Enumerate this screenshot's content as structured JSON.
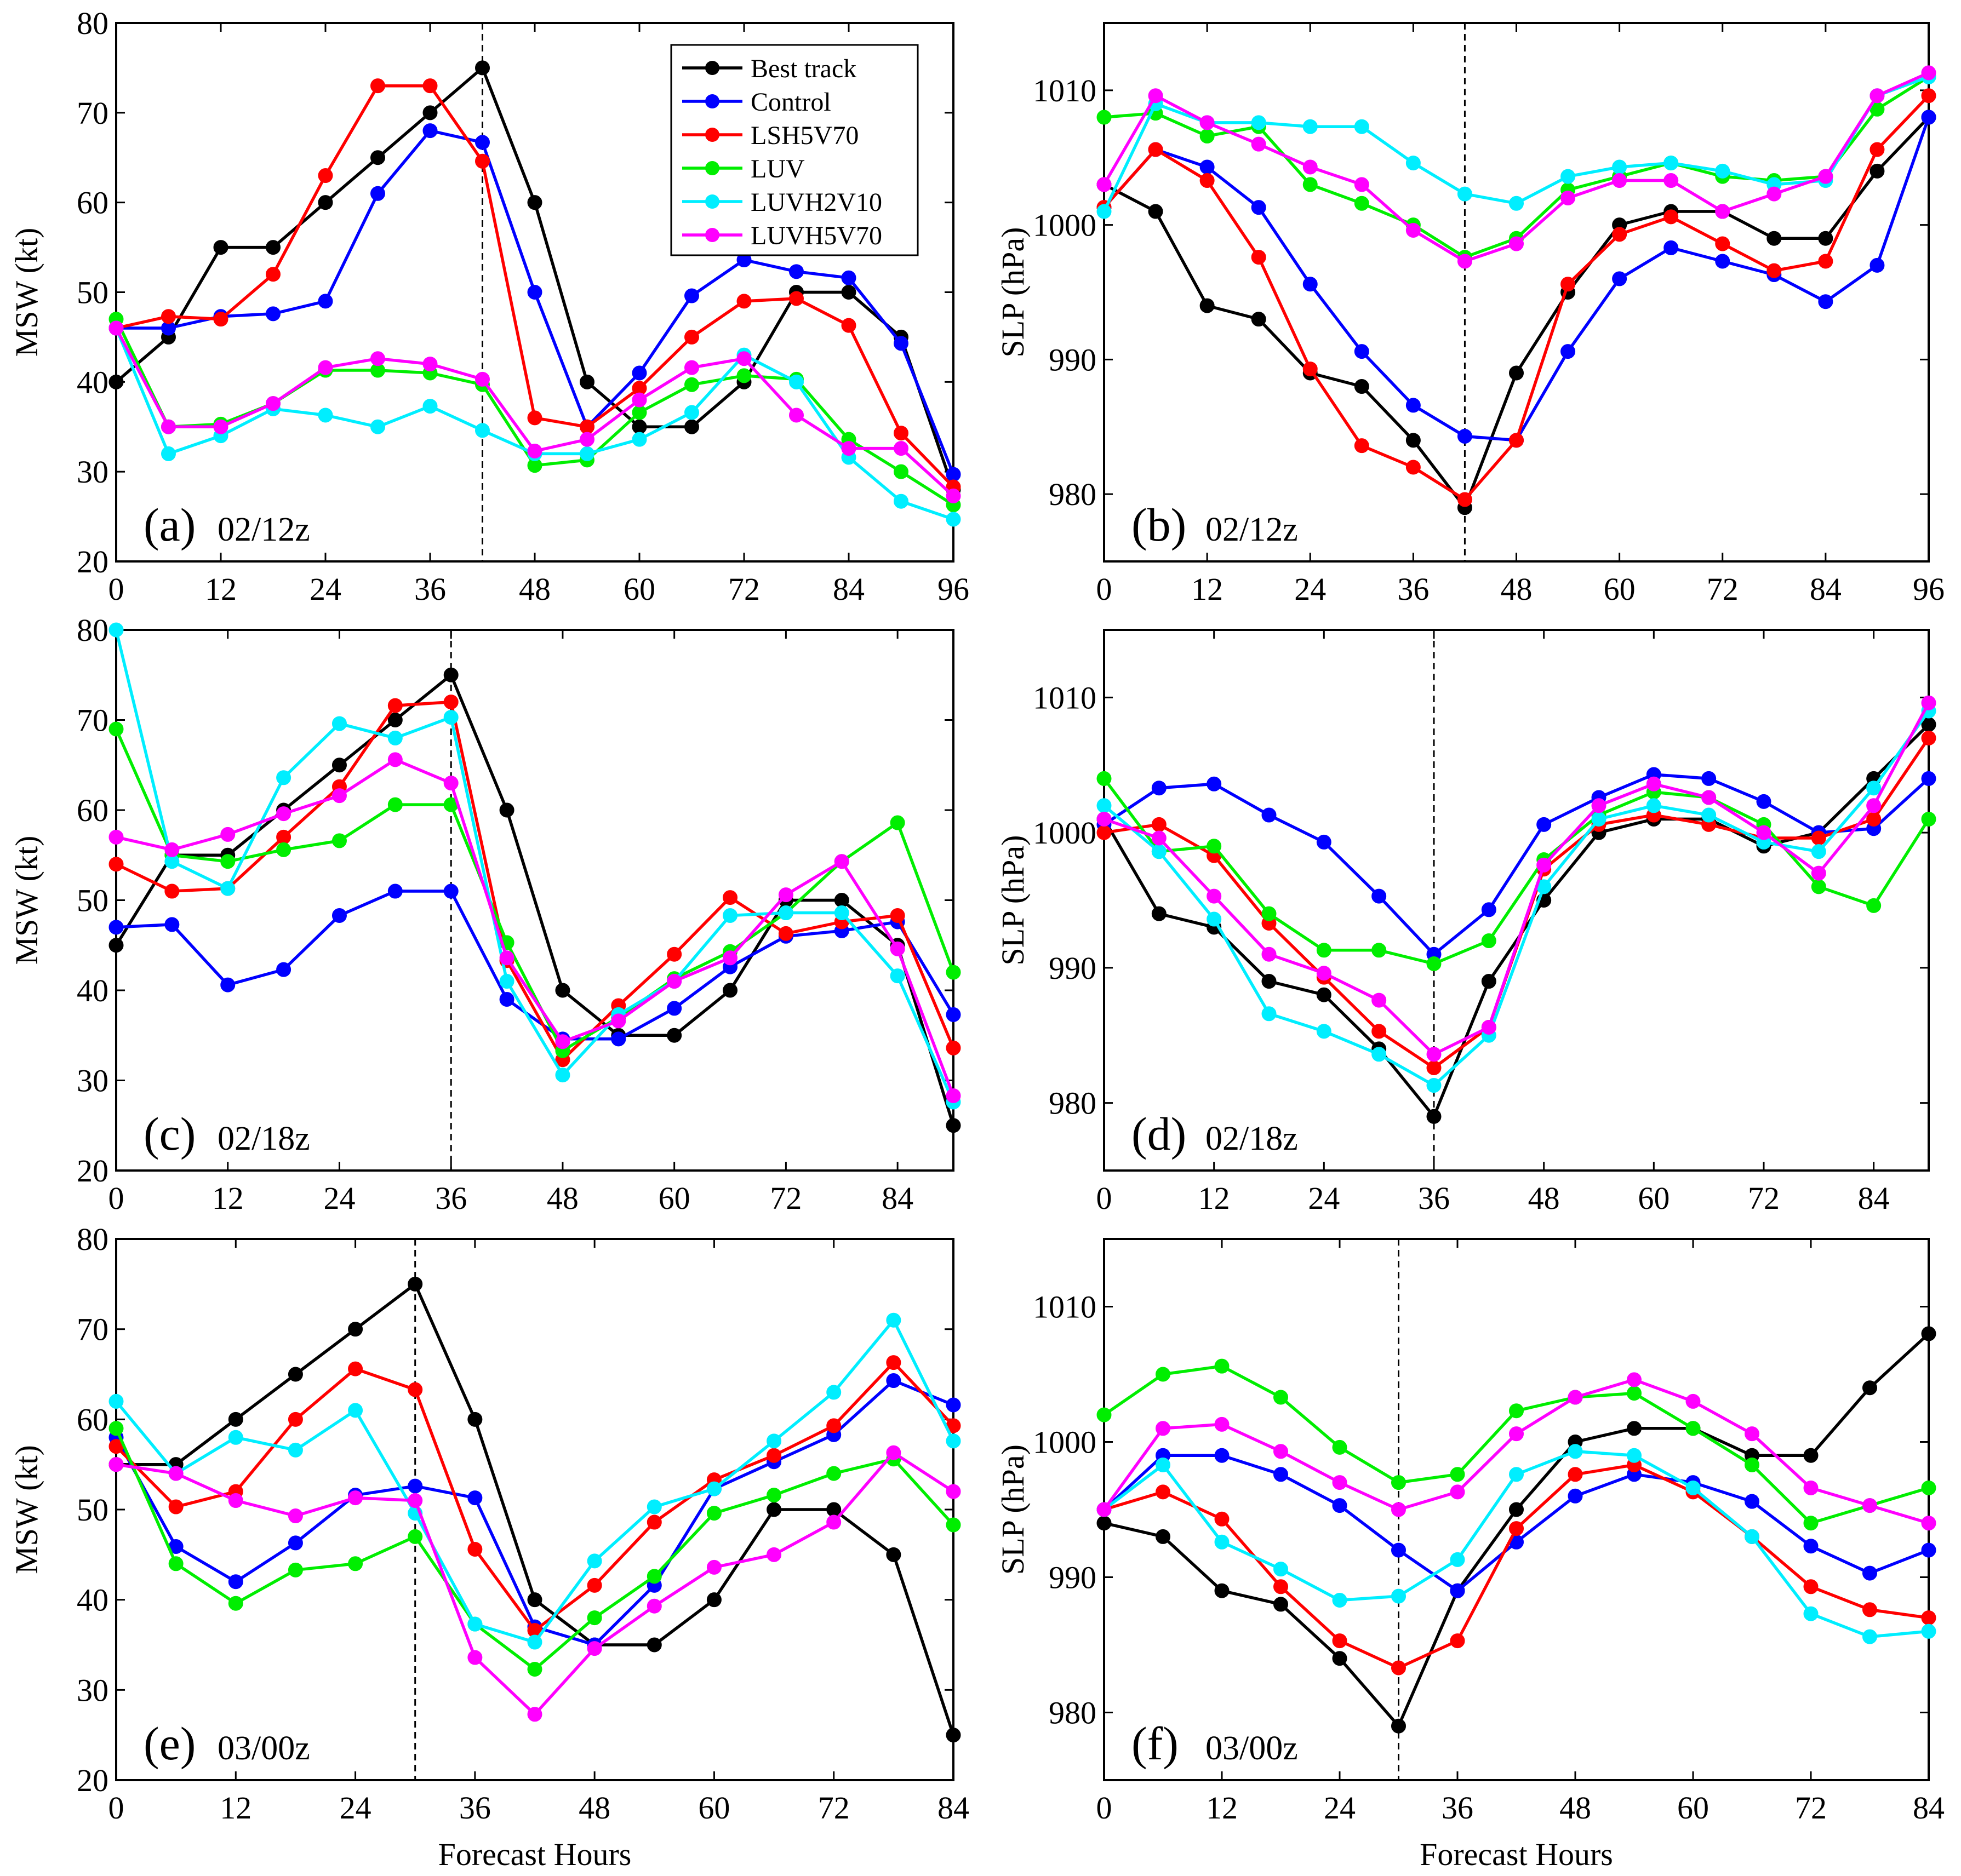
{
  "figure": {
    "series_styles": [
      {
        "name": "Best track",
        "color": "#000000"
      },
      {
        "name": "Control",
        "color": "#0000ff"
      },
      {
        "name": "LSH5V70",
        "color": "#ff0000"
      },
      {
        "name": "LUV",
        "color": "#00ee00"
      },
      {
        "name": "LUVH2V10",
        "color": "#00eeff"
      },
      {
        "name": "LUVH5V70",
        "color": "#ff00ff"
      }
    ],
    "x_common_label": "Forecast Hours"
  },
  "chart_data": [
    {
      "type": "line",
      "panel": "(a)",
      "init_time": "02/12z",
      "ylabel": "MSW (kt)",
      "xlabel": "",
      "xlim": [
        0,
        96
      ],
      "ylim": [
        20,
        80
      ],
      "xticks": [
        0,
        12,
        24,
        36,
        48,
        60,
        72,
        84,
        96
      ],
      "yticks": [
        20,
        30,
        40,
        50,
        60,
        70,
        80
      ],
      "vline_x": 42,
      "legend": "top-right",
      "x": [
        0,
        6,
        12,
        18,
        24,
        30,
        36,
        42,
        48,
        54,
        60,
        66,
        72,
        78,
        84,
        90,
        96
      ],
      "series": [
        {
          "name": "Best track",
          "values": [
            40,
            45,
            55,
            55,
            60,
            65,
            70,
            75,
            60,
            40,
            35,
            35,
            40,
            50,
            50,
            45,
            28
          ]
        },
        {
          "name": "Control",
          "values": [
            46,
            46,
            47.3,
            47.6,
            49,
            61,
            68,
            66.7,
            50,
            35,
            41,
            49.6,
            53.6,
            52.3,
            51.6,
            44.3,
            29.7
          ]
        },
        {
          "name": "LSH5V70",
          "values": [
            46,
            47.3,
            47,
            52,
            63,
            73,
            73,
            64.6,
            36,
            35,
            39.3,
            45,
            49,
            49.3,
            46.3,
            34.3,
            28.3
          ]
        },
        {
          "name": "LUV",
          "values": [
            47,
            35,
            35.3,
            37.6,
            41.3,
            41.3,
            41,
            39.7,
            30.7,
            31.3,
            36.6,
            39.7,
            40.7,
            40.3,
            33.6,
            30,
            26.3
          ]
        },
        {
          "name": "LUVH2V10",
          "values": [
            46,
            32,
            34,
            37,
            36.3,
            35,
            37.3,
            34.6,
            32,
            32,
            33.6,
            36.6,
            43,
            40,
            31.6,
            26.7,
            24.7
          ]
        },
        {
          "name": "LUVH5V70",
          "values": [
            46,
            35,
            35,
            37.6,
            41.6,
            42.6,
            42,
            40.3,
            32.3,
            33.6,
            38,
            41.6,
            42.6,
            36.3,
            32.6,
            32.6,
            27.3
          ]
        }
      ]
    },
    {
      "type": "line",
      "panel": "(b)",
      "init_time": "02/12z",
      "ylabel": "SLP (hPa)",
      "xlabel": "",
      "xlim": [
        0,
        96
      ],
      "ylim": [
        975,
        1015
      ],
      "xticks": [
        0,
        12,
        24,
        36,
        48,
        60,
        72,
        84,
        96
      ],
      "yticks": [
        980,
        990,
        1000,
        1010
      ],
      "vline_x": 42,
      "x": [
        0,
        6,
        12,
        18,
        24,
        30,
        36,
        42,
        48,
        54,
        60,
        66,
        72,
        78,
        84,
        90,
        96
      ],
      "series": [
        {
          "name": "Best track",
          "values": [
            1003,
            1001,
            994,
            993,
            989,
            988,
            984,
            979,
            989,
            995,
            1000,
            1001,
            1001,
            999,
            999,
            1004,
            1008
          ]
        },
        {
          "name": "Control",
          "values": [
            1001.3,
            1005.6,
            1004.3,
            1001.3,
            995.6,
            990.6,
            986.6,
            984.3,
            984,
            990.6,
            996,
            998.3,
            997.3,
            996.3,
            994.3,
            997,
            1008
          ]
        },
        {
          "name": "LSH5V70",
          "values": [
            1001.3,
            1005.6,
            1003.3,
            997.6,
            989.3,
            983.6,
            982,
            979.6,
            984,
            995.6,
            999.3,
            1000.6,
            998.6,
            996.6,
            997.3,
            1005.6,
            1009.6
          ]
        },
        {
          "name": "LUV",
          "values": [
            1008,
            1008.3,
            1006.6,
            1007.3,
            1003,
            1001.6,
            1000,
            997.6,
            999,
            1002.6,
            1003.6,
            1004.6,
            1003.6,
            1003.3,
            1003.6,
            1008.6,
            1011
          ]
        },
        {
          "name": "LUVH2V10",
          "values": [
            1001,
            1009,
            1007.6,
            1007.6,
            1007.3,
            1007.3,
            1004.6,
            1002.3,
            1001.6,
            1003.6,
            1004.3,
            1004.6,
            1004,
            1003,
            1003.3,
            1009.6,
            1011
          ]
        },
        {
          "name": "LUVH5V70",
          "values": [
            1003,
            1009.6,
            1007.6,
            1006,
            1004.3,
            1003,
            999.6,
            997.3,
            998.6,
            1002,
            1003.3,
            1003.3,
            1001,
            1002.3,
            1003.6,
            1009.6,
            1011.3
          ]
        }
      ]
    },
    {
      "type": "line",
      "panel": "(c)",
      "init_time": "02/18z",
      "ylabel": "MSW (kt)",
      "xlabel": "",
      "xlim": [
        0,
        90
      ],
      "ylim": [
        20,
        80
      ],
      "xticks": [
        0,
        12,
        24,
        36,
        48,
        60,
        72,
        84
      ],
      "yticks": [
        20,
        30,
        40,
        50,
        60,
        70,
        80
      ],
      "vline_x": 36,
      "x": [
        0,
        6,
        12,
        18,
        24,
        30,
        36,
        42,
        48,
        54,
        60,
        66,
        72,
        78,
        84,
        90
      ],
      "series": [
        {
          "name": "Best track",
          "values": [
            45,
            55,
            55,
            60,
            65,
            70,
            75,
            60,
            40,
            35,
            35,
            40,
            50,
            50,
            45,
            25
          ]
        },
        {
          "name": "Control",
          "values": [
            47,
            47.3,
            40.6,
            42.3,
            48.3,
            51,
            51,
            39,
            34.6,
            34.6,
            38,
            42.6,
            46,
            46.6,
            47.6,
            37.3
          ]
        },
        {
          "name": "LSH5V70",
          "values": [
            54,
            51,
            51.3,
            57,
            62.6,
            71.6,
            72,
            43.3,
            32.3,
            38.3,
            44,
            50.3,
            46.3,
            47.6,
            48.3,
            33.6
          ]
        },
        {
          "name": "LUV",
          "values": [
            69,
            55,
            54.3,
            55.6,
            56.6,
            60.6,
            60.6,
            45.3,
            33.3,
            37,
            41.3,
            44.3,
            48.6,
            54.3,
            58.6,
            42
          ]
        },
        {
          "name": "LUVH2V10",
          "values": [
            80,
            54.3,
            51.3,
            63.6,
            69.6,
            68,
            70.3,
            41,
            30.6,
            37.3,
            41,
            48.3,
            48.6,
            48.6,
            41.6,
            27.6
          ]
        },
        {
          "name": "LUVH5V70",
          "values": [
            57,
            55.6,
            57.3,
            59.6,
            61.6,
            65.6,
            63,
            43.6,
            34.3,
            36.6,
            41,
            43.6,
            50.6,
            54.3,
            44.6,
            28.3
          ]
        }
      ]
    },
    {
      "type": "line",
      "panel": "(d)",
      "init_time": "02/18z",
      "ylabel": "SLP (hPa)",
      "xlabel": "",
      "xlim": [
        0,
        90
      ],
      "ylim": [
        975,
        1015
      ],
      "xticks": [
        0,
        12,
        24,
        36,
        48,
        60,
        72,
        84
      ],
      "yticks": [
        980,
        990,
        1000,
        1010
      ],
      "vline_x": 36,
      "x": [
        0,
        6,
        12,
        18,
        24,
        30,
        36,
        42,
        48,
        54,
        60,
        66,
        72,
        78,
        84,
        90
      ],
      "series": [
        {
          "name": "Best track",
          "values": [
            1001,
            994,
            993,
            989,
            988,
            984,
            979,
            989,
            995,
            1000,
            1001,
            1001,
            999,
            1000,
            1004,
            1008
          ]
        },
        {
          "name": "Control",
          "values": [
            1000.6,
            1003.3,
            1003.6,
            1001.3,
            999.3,
            995.3,
            991,
            994.3,
            1000.6,
            1002.6,
            1004.3,
            1004,
            1002.3,
            1000,
            1000.3,
            1004
          ]
        },
        {
          "name": "LSH5V70",
          "values": [
            1000,
            1000.6,
            998.3,
            993.3,
            989.3,
            985.3,
            982.6,
            985.6,
            997.3,
            1000.6,
            1001.3,
            1000.6,
            999.6,
            999.6,
            1001,
            1007
          ]
        },
        {
          "name": "LUV",
          "values": [
            1004,
            998.6,
            999,
            994,
            991.3,
            991.3,
            990.3,
            992,
            998,
            1001.3,
            1003,
            1002.6,
            1000.6,
            996,
            994.6,
            1001
          ]
        },
        {
          "name": "LUVH2V10",
          "values": [
            1002,
            998.6,
            993.6,
            986.6,
            985.3,
            983.6,
            981.3,
            985,
            996,
            1001,
            1002,
            1001.3,
            999.3,
            998.6,
            1003.3,
            1009
          ]
        },
        {
          "name": "LUVH5V70",
          "values": [
            1001,
            999.6,
            995.3,
            991,
            989.6,
            987.6,
            983.6,
            985.6,
            997.6,
            1002,
            1003.6,
            1002.6,
            1000,
            997,
            1002,
            1009.6
          ]
        }
      ]
    },
    {
      "type": "line",
      "panel": "(e)",
      "init_time": "03/00z",
      "ylabel": "MSW (kt)",
      "xlabel": "Forecast Hours",
      "xlim": [
        0,
        84
      ],
      "ylim": [
        20,
        80
      ],
      "xticks": [
        0,
        12,
        24,
        36,
        48,
        60,
        72,
        84
      ],
      "yticks": [
        20,
        30,
        40,
        50,
        60,
        70,
        80
      ],
      "vline_x": 30,
      "x": [
        0,
        6,
        12,
        18,
        24,
        30,
        36,
        42,
        48,
        54,
        60,
        66,
        72,
        78,
        84
      ],
      "series": [
        {
          "name": "Best track",
          "values": [
            55,
            55,
            60,
            65,
            70,
            75,
            60,
            40,
            35,
            35,
            40,
            50,
            50,
            45,
            25
          ]
        },
        {
          "name": "Control",
          "values": [
            58,
            45.9,
            42,
            46.3,
            51.6,
            52.6,
            51.3,
            37,
            35,
            41.6,
            52.3,
            55.3,
            58.3,
            64.3,
            61.6
          ]
        },
        {
          "name": "LSH5V70",
          "values": [
            57,
            50.3,
            52,
            60,
            65.6,
            63.3,
            45.6,
            36.6,
            41.6,
            48.6,
            53.3,
            56,
            59.3,
            66.3,
            59.3
          ]
        },
        {
          "name": "LUV",
          "values": [
            59,
            44,
            39.6,
            43.3,
            44,
            47,
            37.3,
            32.3,
            38,
            42.6,
            49.6,
            51.6,
            54,
            55.6,
            48.3
          ]
        },
        {
          "name": "LUVH2V10",
          "values": [
            62,
            54,
            58,
            56.6,
            61,
            49.6,
            37.3,
            35.3,
            44.3,
            50.3,
            52.3,
            57.6,
            63,
            71,
            57.6
          ]
        },
        {
          "name": "LUVH5V70",
          "values": [
            55,
            54,
            51,
            49.3,
            51.3,
            51,
            33.6,
            27.3,
            34.6,
            39.3,
            43.6,
            45,
            48.6,
            56.3,
            52
          ]
        }
      ]
    },
    {
      "type": "line",
      "panel": "(f)",
      "init_time": "03/00z",
      "ylabel": "SLP (hPa)",
      "xlabel": "Forecast Hours",
      "xlim": [
        0,
        84
      ],
      "ylim": [
        975,
        1015
      ],
      "xticks": [
        0,
        12,
        24,
        36,
        48,
        60,
        72,
        84
      ],
      "yticks": [
        980,
        990,
        1000,
        1010
      ],
      "vline_x": 30,
      "x": [
        0,
        6,
        12,
        18,
        24,
        30,
        36,
        42,
        48,
        54,
        60,
        66,
        72,
        78,
        84
      ],
      "series": [
        {
          "name": "Best track",
          "values": [
            994,
            993,
            989,
            988,
            984,
            979,
            989,
            995,
            1000,
            1001,
            1001,
            999,
            999,
            1004,
            1008
          ]
        },
        {
          "name": "Control",
          "values": [
            995,
            999,
            999,
            997.6,
            995.3,
            992,
            989,
            992.6,
            996,
            997.6,
            997,
            995.6,
            992.3,
            990.3,
            992
          ]
        },
        {
          "name": "LSH5V70",
          "values": [
            995,
            996.3,
            994.3,
            989.3,
            985.3,
            983.3,
            985.3,
            993.6,
            997.6,
            998.3,
            996.3,
            993,
            989.3,
            987.6,
            987
          ]
        },
        {
          "name": "LUV",
          "values": [
            1002,
            1005,
            1005.6,
            1003.3,
            999.6,
            997,
            997.6,
            1002.3,
            1003.3,
            1003.6,
            1001,
            998.3,
            994,
            995.3,
            996.6
          ]
        },
        {
          "name": "LUVH2V10",
          "values": [
            995,
            998.3,
            992.6,
            990.6,
            988.3,
            988.6,
            991.3,
            997.6,
            999.3,
            999,
            996.6,
            993,
            987.3,
            985.6,
            986
          ]
        },
        {
          "name": "LUVH5V70",
          "values": [
            995,
            1001,
            1001.3,
            999.3,
            997,
            995,
            996.3,
            1000.6,
            1003.3,
            1004.6,
            1003,
            1000.6,
            996.6,
            995.3,
            994
          ]
        }
      ]
    }
  ]
}
